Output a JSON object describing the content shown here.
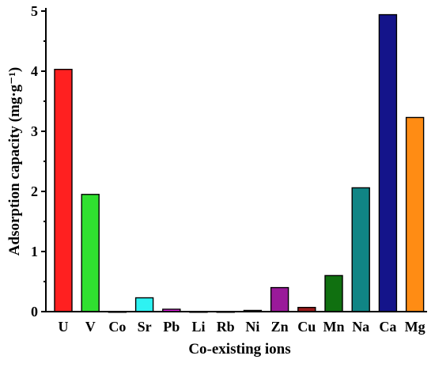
{
  "chart_data": {
    "type": "bar",
    "categories": [
      "U",
      "V",
      "Co",
      "Sr",
      "Pb",
      "Li",
      "Rb",
      "Ni",
      "Zn",
      "Cu",
      "Mn",
      "Na",
      "Ca",
      "Mg"
    ],
    "values": [
      4.03,
      1.95,
      0.0,
      0.23,
      0.04,
      0.0,
      0.0,
      0.02,
      0.4,
      0.07,
      0.6,
      2.06,
      4.94,
      3.23
    ],
    "colors": [
      "#ff2020",
      "#30e030",
      "#1010ff",
      "#2ef2f2",
      "#e020e0",
      "#e8e020",
      "#203090",
      "#a04040",
      "#9a1a9a",
      "#9a1a1a",
      "#107010",
      "#108585",
      "#14148a",
      "#ff8c14"
    ],
    "title": "",
    "xlabel": "Co-existing ions",
    "ylabel": "Adsorption capacity (mg·g⁻¹)",
    "ylim": [
      0,
      5
    ],
    "yticks": [
      "0",
      "1",
      "2",
      "3",
      "4",
      "5"
    ],
    "grid": false,
    "legend": "none"
  }
}
